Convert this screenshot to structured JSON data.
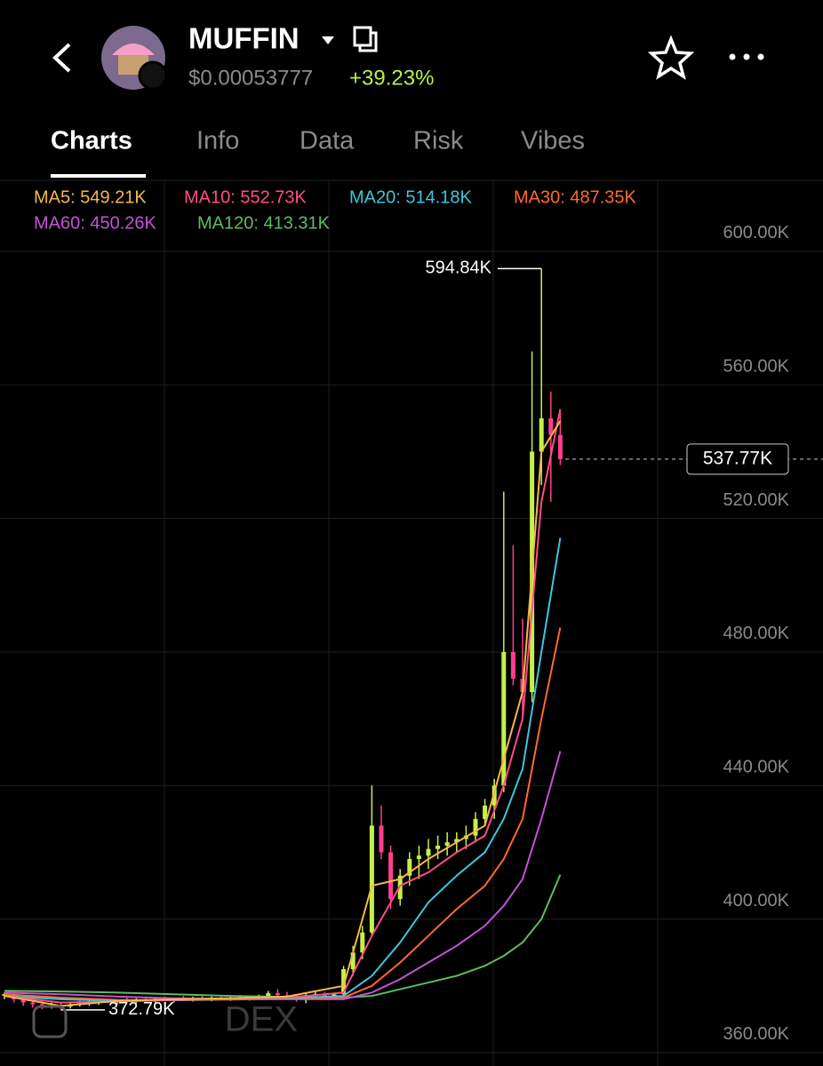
{
  "header": {
    "title": "MUFFIN",
    "price": "$0.00053777",
    "change": "+39.23%"
  },
  "tabs": [
    "Charts",
    "Info",
    "Data",
    "Risk",
    "Vibes"
  ],
  "watermark": "DEX",
  "chart_data": {
    "type": "candlestick",
    "up_color": "#c5f04a",
    "down_color": "#ff3f8e",
    "ylim": [
      356,
      621
    ],
    "yticks": [
      {
        "value": 600,
        "label": "600.00K"
      },
      {
        "value": 560,
        "label": "560.00K"
      },
      {
        "value": 520,
        "label": "520.00K"
      },
      {
        "value": 480,
        "label": "480.00K"
      },
      {
        "value": 440,
        "label": "440.00K"
      },
      {
        "value": 400,
        "label": "400.00K"
      },
      {
        "value": 360,
        "label": "360.00K"
      }
    ],
    "grid": true,
    "candles": [
      {
        "o": 377,
        "h": 378,
        "l": 376,
        "c": 377.5
      },
      {
        "o": 377.5,
        "h": 378,
        "l": 375,
        "c": 376
      },
      {
        "o": 376,
        "h": 377,
        "l": 374,
        "c": 375
      },
      {
        "o": 375,
        "h": 376,
        "l": 373.5,
        "c": 374.5
      },
      {
        "o": 374.5,
        "h": 375.5,
        "l": 373,
        "c": 374
      },
      {
        "o": 374,
        "h": 375,
        "l": 373.2,
        "c": 374.2
      },
      {
        "o": 374.2,
        "h": 375,
        "l": 372.79,
        "c": 373.8
      },
      {
        "o": 373.8,
        "h": 375,
        "l": 373.2,
        "c": 374.5
      },
      {
        "o": 374.5,
        "h": 375.5,
        "l": 373.8,
        "c": 374.8
      },
      {
        "o": 374.8,
        "h": 375.6,
        "l": 374,
        "c": 375
      },
      {
        "o": 375,
        "h": 376,
        "l": 374.3,
        "c": 375.5
      },
      {
        "o": 375.5,
        "h": 376.2,
        "l": 374.8,
        "c": 375.2
      },
      {
        "o": 375.2,
        "h": 376,
        "l": 374.5,
        "c": 375.8
      },
      {
        "o": 375.8,
        "h": 376.5,
        "l": 375,
        "c": 375.4
      },
      {
        "o": 375.4,
        "h": 376.3,
        "l": 374.8,
        "c": 375.9
      },
      {
        "o": 375.9,
        "h": 376.6,
        "l": 375.2,
        "c": 375.6
      },
      {
        "o": 375.6,
        "h": 376.4,
        "l": 375,
        "c": 376
      },
      {
        "o": 376,
        "h": 376.8,
        "l": 375.4,
        "c": 375.7
      },
      {
        "o": 375.7,
        "h": 376.5,
        "l": 375,
        "c": 376.2
      },
      {
        "o": 376.2,
        "h": 377,
        "l": 375.6,
        "c": 375.9
      },
      {
        "o": 375.9,
        "h": 376.8,
        "l": 375.3,
        "c": 376.3
      },
      {
        "o": 376.3,
        "h": 377,
        "l": 375.7,
        "c": 376
      },
      {
        "o": 376,
        "h": 376.8,
        "l": 375.4,
        "c": 376.4
      },
      {
        "o": 376.4,
        "h": 377.2,
        "l": 375.8,
        "c": 376.1
      },
      {
        "o": 376.1,
        "h": 376.9,
        "l": 375.5,
        "c": 376.5
      },
      {
        "o": 376.5,
        "h": 377.3,
        "l": 375.9,
        "c": 376.2
      },
      {
        "o": 376.2,
        "h": 377,
        "l": 375.6,
        "c": 376.6
      },
      {
        "o": 376.6,
        "h": 377.4,
        "l": 376,
        "c": 377
      },
      {
        "o": 377,
        "h": 378.5,
        "l": 376.4,
        "c": 377.8
      },
      {
        "o": 377.8,
        "h": 379,
        "l": 376.8,
        "c": 377.2
      },
      {
        "o": 377.2,
        "h": 378.2,
        "l": 376.2,
        "c": 376.6
      },
      {
        "o": 376.6,
        "h": 377.5,
        "l": 375.2,
        "c": 375.8
      },
      {
        "o": 375.8,
        "h": 377.8,
        "l": 374.8,
        "c": 377.2
      },
      {
        "o": 377.2,
        "h": 378.4,
        "l": 376.5,
        "c": 377.6
      },
      {
        "o": 377.6,
        "h": 378.2,
        "l": 376.8,
        "c": 377
      },
      {
        "o": 377,
        "h": 378,
        "l": 376.3,
        "c": 377.5
      },
      {
        "o": 377.5,
        "h": 386,
        "l": 377,
        "c": 385
      },
      {
        "o": 385,
        "h": 392,
        "l": 383,
        "c": 390
      },
      {
        "o": 390,
        "h": 398,
        "l": 388,
        "c": 396
      },
      {
        "o": 396,
        "h": 440,
        "l": 395,
        "c": 428
      },
      {
        "o": 428,
        "h": 434,
        "l": 418,
        "c": 420
      },
      {
        "o": 420,
        "h": 422,
        "l": 403,
        "c": 406
      },
      {
        "o": 406,
        "h": 415,
        "l": 404,
        "c": 413
      },
      {
        "o": 413,
        "h": 420,
        "l": 410,
        "c": 418
      },
      {
        "o": 418,
        "h": 422,
        "l": 412,
        "c": 419
      },
      {
        "o": 419,
        "h": 424,
        "l": 415,
        "c": 421
      },
      {
        "o": 421,
        "h": 425,
        "l": 418,
        "c": 422
      },
      {
        "o": 422,
        "h": 426,
        "l": 419,
        "c": 423
      },
      {
        "o": 423,
        "h": 426,
        "l": 420,
        "c": 424
      },
      {
        "o": 424,
        "h": 428,
        "l": 421,
        "c": 425
      },
      {
        "o": 425,
        "h": 432,
        "l": 423,
        "c": 430
      },
      {
        "o": 430,
        "h": 436,
        "l": 428,
        "c": 434
      },
      {
        "o": 434,
        "h": 442,
        "l": 430,
        "c": 440
      },
      {
        "o": 440,
        "h": 528,
        "l": 438,
        "c": 480
      },
      {
        "o": 480,
        "h": 512,
        "l": 470,
        "c": 472
      },
      {
        "o": 472,
        "h": 490,
        "l": 460,
        "c": 468
      },
      {
        "o": 468,
        "h": 570,
        "l": 465,
        "c": 540
      },
      {
        "o": 540,
        "h": 594.84,
        "l": 530,
        "c": 550
      },
      {
        "o": 550,
        "h": 558,
        "l": 525,
        "c": 545
      },
      {
        "o": 545,
        "h": 552,
        "l": 536,
        "c": 537.77
      }
    ],
    "ma_x": [
      0,
      6,
      12,
      18,
      24,
      30,
      36,
      39,
      42,
      45,
      48,
      51,
      53,
      55,
      57,
      59
    ],
    "series": [
      {
        "name": "MA5",
        "legend": "MA5: 549.21K",
        "color": "#f5b84a",
        "values": [
          377,
          374,
          375.5,
          376,
          376.3,
          376.8,
          380,
          410,
          412,
          418,
          423,
          428,
          448,
          468,
          540,
          549.21
        ]
      },
      {
        "name": "MA10",
        "legend": "MA10: 552.73K",
        "color": "#ff4d85",
        "values": [
          377,
          375,
          375.3,
          375.8,
          376.1,
          376.5,
          378,
          395,
          410,
          414,
          420,
          425,
          440,
          460,
          525,
          552.73
        ]
      },
      {
        "name": "MA20",
        "legend": "MA20: 514.18K",
        "color": "#3cc6de",
        "values": [
          377,
          376,
          375.5,
          375.7,
          376,
          376.3,
          377,
          383,
          393,
          405,
          413,
          420,
          430,
          445,
          480,
          514.18
        ]
      },
      {
        "name": "MA30",
        "legend": "MA30: 487.35K",
        "color": "#ff6a2b",
        "values": [
          377.5,
          376.5,
          375.8,
          375.7,
          375.9,
          376.2,
          376.5,
          380,
          387,
          395,
          403,
          410,
          418,
          430,
          460,
          487.35
        ]
      },
      {
        "name": "MA60",
        "legend": "MA60: 450.26K",
        "color": "#c452d8",
        "values": [
          378,
          377.5,
          376.8,
          376.3,
          376,
          376,
          376,
          378,
          382,
          387,
          392,
          398,
          404,
          412,
          430,
          450.26
        ]
      },
      {
        "name": "MA120",
        "legend": "MA120: 413.31K",
        "color": "#5dbd5d",
        "values": [
          378.5,
          378.3,
          378,
          377.5,
          377,
          376.7,
          376.5,
          377,
          379,
          381,
          383,
          386,
          389,
          393,
          400,
          413.31
        ]
      }
    ],
    "high_label": "594.84K",
    "low_label": "372.79K",
    "current_value": 537.77,
    "current_label": "537.77K"
  }
}
